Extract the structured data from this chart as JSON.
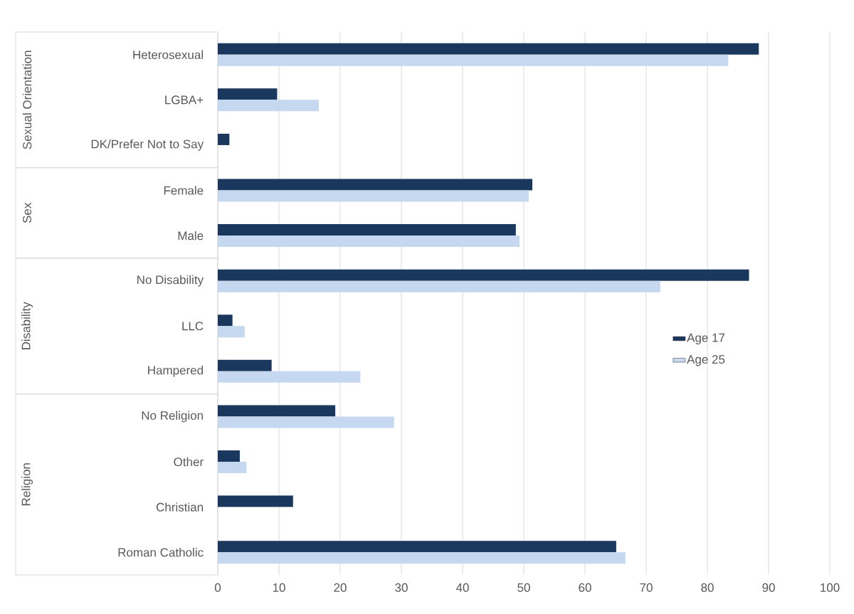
{
  "chart_data": {
    "type": "bar",
    "orientation": "horizontal",
    "categories": [
      "Heterosexual",
      "LGBA+",
      "DK/Prefer Not to Say",
      "Female",
      "Male",
      "No Disability",
      "LLC",
      "Hampered",
      "No Religion",
      "Other",
      "Christian",
      "Roman Catholic"
    ],
    "series": [
      {
        "name": "Age 17",
        "color": "#1a375e",
        "values": [
          88.4,
          9.7,
          1.9,
          51.4,
          48.7,
          86.8,
          2.4,
          8.8,
          19.2,
          3.6,
          12.3,
          65.1
        ]
      },
      {
        "name": "Age 25",
        "color": "#c5d8ef",
        "values": [
          83.4,
          16.5,
          null,
          50.8,
          49.3,
          72.3,
          4.4,
          23.3,
          28.8,
          4.7,
          null,
          66.6
        ]
      }
    ],
    "xlim": [
      0,
      100
    ],
    "xticks": [
      0,
      10,
      20,
      30,
      40,
      50,
      60,
      70,
      80,
      90,
      100
    ],
    "grid": "x",
    "legend": "right",
    "annotations": [
      "Sexual Orientation",
      "Sex",
      "Disability",
      "Religion"
    ]
  }
}
